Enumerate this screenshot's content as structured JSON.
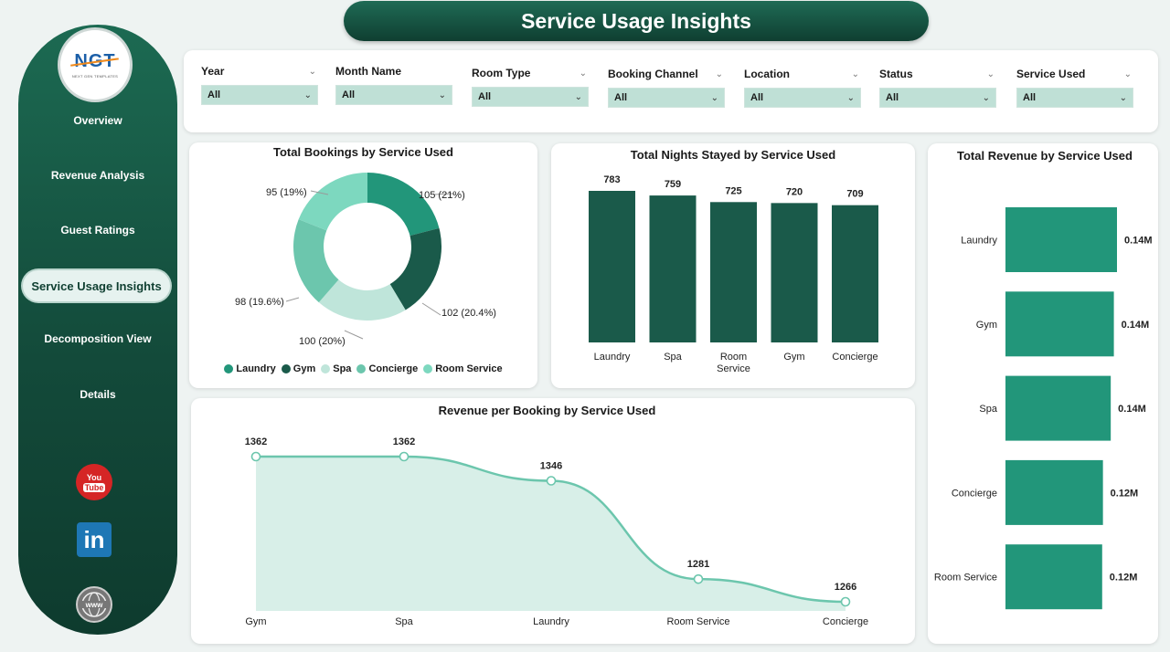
{
  "app": {
    "title": "Service Usage Insights"
  },
  "sidebar": {
    "logo_text": "NGT",
    "logo_sub": "NEXT GEN TEMPLATES",
    "items": [
      {
        "label": "Overview"
      },
      {
        "label": "Revenue Analysis"
      },
      {
        "label": "Guest Ratings"
      },
      {
        "label": "Service Usage Insights"
      },
      {
        "label": "Decomposition View"
      },
      {
        "label": "Details"
      }
    ],
    "active_index": 3,
    "social": {
      "youtube_top": "You",
      "youtube_bottom": "Tube",
      "linkedin": "in",
      "web": "www"
    }
  },
  "filters": [
    {
      "label": "Year",
      "value": "All"
    },
    {
      "label": "Month Name",
      "value": "All"
    },
    {
      "label": "Room Type",
      "value": "All"
    },
    {
      "label": "Booking Channel",
      "value": "All"
    },
    {
      "label": "Location",
      "value": "All"
    },
    {
      "label": "Status",
      "value": "All"
    },
    {
      "label": "Service Used",
      "value": "All"
    }
  ],
  "colors": {
    "dark_green": "#1a5a4a",
    "mid_green": "#22967a",
    "light_green": "#7dd3bd",
    "pale_green": "#bfe5da",
    "area_line": "#6cc6ad",
    "area_fill": "#d8efe8"
  },
  "chart_data": [
    {
      "id": "bookings",
      "type": "pie",
      "title": "Total Bookings by Service Used",
      "slices": [
        {
          "name": "Laundry",
          "value": 105,
          "label": "105 (21%)",
          "color": "#22967a"
        },
        {
          "name": "Gym",
          "value": 102,
          "label": "102 (20.4%)",
          "color": "#1a5a4a"
        },
        {
          "name": "Spa",
          "value": 100,
          "label": "100 (20%)",
          "color": "#bfe5da"
        },
        {
          "name": "Concierge",
          "value": 98,
          "label": "98 (19.6%)",
          "color": "#6cc6ad"
        },
        {
          "name": "Room Service",
          "value": 95,
          "label": "95 (19%)",
          "color": "#7dd8bf"
        }
      ],
      "legend": [
        "Laundry",
        "Gym",
        "Spa",
        "Concierge",
        "Room Service"
      ]
    },
    {
      "id": "nights",
      "type": "bar",
      "title": "Total Nights Stayed by Service Used",
      "categories": [
        "Laundry",
        "Spa",
        "Room Service",
        "Gym",
        "Concierge"
      ],
      "values": [
        783,
        759,
        725,
        720,
        709
      ],
      "ylim": [
        0,
        783
      ]
    },
    {
      "id": "revenue",
      "type": "bar",
      "orientation": "horizontal",
      "title": "Total Revenue by Service Used",
      "categories": [
        "Laundry",
        "Gym",
        "Spa",
        "Concierge",
        "Room Service"
      ],
      "values": [
        0.143,
        0.139,
        0.135,
        0.125,
        0.124
      ],
      "labels": [
        "0.14M",
        "0.14M",
        "0.14M",
        "0.12M",
        "0.12M"
      ]
    },
    {
      "id": "rev_per_booking",
      "type": "area",
      "title": "Revenue per Booking by Service Used",
      "categories": [
        "Gym",
        "Spa",
        "Laundry",
        "Room Service",
        "Concierge"
      ],
      "values": [
        1362,
        1362,
        1346,
        1281,
        1266
      ],
      "ylim": [
        1266,
        1362
      ]
    }
  ]
}
